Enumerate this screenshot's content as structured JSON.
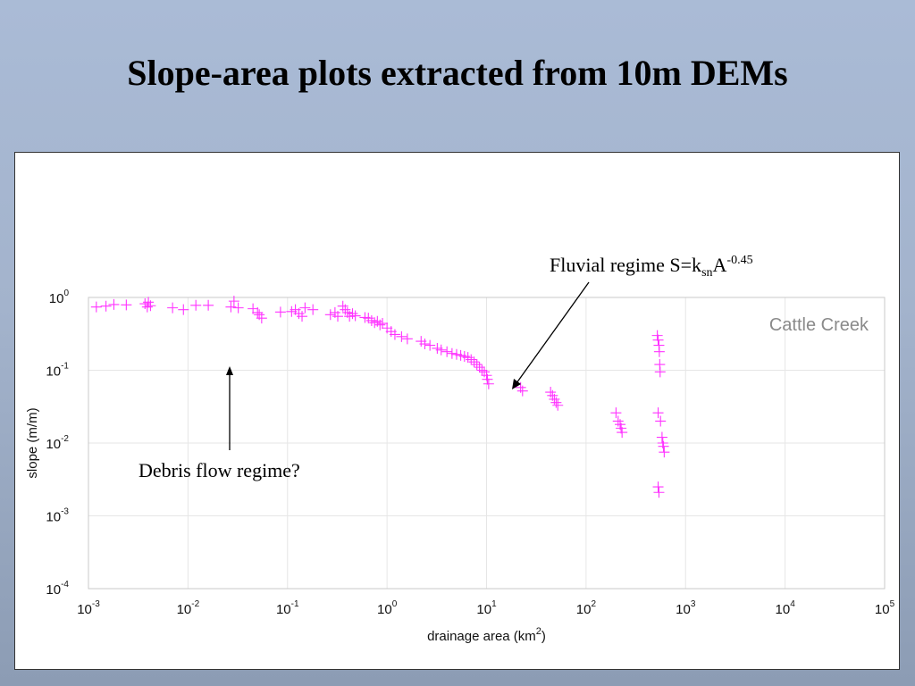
{
  "slide": {
    "title": "Slope-area plots extracted from 10m DEMs"
  },
  "chart_data": {
    "type": "scatter",
    "xlabel": {
      "text": "drainage area (km",
      "sup": "2",
      "end": ")"
    },
    "ylabel": "slope (m/m)",
    "xscale": "log",
    "yscale": "log",
    "xlim": [
      0.001,
      100000
    ],
    "ylim": [
      0.0001,
      1
    ],
    "grid": true,
    "marker": "+",
    "color": "#ff33ff",
    "xticks": [
      {
        "base": "10",
        "exp": "-3"
      },
      {
        "base": "10",
        "exp": "-2"
      },
      {
        "base": "10",
        "exp": "-1"
      },
      {
        "base": "10",
        "exp": "0"
      },
      {
        "base": "10",
        "exp": "1"
      },
      {
        "base": "10",
        "exp": "2"
      },
      {
        "base": "10",
        "exp": "3"
      },
      {
        "base": "10",
        "exp": "4"
      },
      {
        "base": "10",
        "exp": "5"
      }
    ],
    "yticks": [
      {
        "base": "10",
        "exp": "0"
      },
      {
        "base": "10",
        "exp": "-1"
      },
      {
        "base": "10",
        "exp": "-2"
      },
      {
        "base": "10",
        "exp": "-3"
      },
      {
        "base": "10",
        "exp": "-4"
      }
    ],
    "series_label": "Cattle Creek",
    "annotations": {
      "fluvial": {
        "prefix": "Fluvial regime S=k",
        "sub": "sn",
        "mid": "A",
        "sup": "-0.45"
      },
      "debris": "Debris flow regime?"
    },
    "points": [
      [
        0.0012,
        0.74
      ],
      [
        0.0015,
        0.76
      ],
      [
        0.0018,
        0.8
      ],
      [
        0.0024,
        0.79
      ],
      [
        0.0037,
        0.82
      ],
      [
        0.0039,
        0.74
      ],
      [
        0.004,
        0.86
      ],
      [
        0.0042,
        0.77
      ],
      [
        0.007,
        0.72
      ],
      [
        0.009,
        0.68
      ],
      [
        0.012,
        0.78
      ],
      [
        0.016,
        0.78
      ],
      [
        0.027,
        0.74
      ],
      [
        0.029,
        0.89
      ],
      [
        0.032,
        0.72
      ],
      [
        0.045,
        0.7
      ],
      [
        0.05,
        0.62
      ],
      [
        0.052,
        0.58
      ],
      [
        0.055,
        0.52
      ],
      [
        0.085,
        0.63
      ],
      [
        0.11,
        0.64
      ],
      [
        0.12,
        0.68
      ],
      [
        0.13,
        0.6
      ],
      [
        0.14,
        0.55
      ],
      [
        0.15,
        0.72
      ],
      [
        0.18,
        0.68
      ],
      [
        0.27,
        0.58
      ],
      [
        0.3,
        0.62
      ],
      [
        0.32,
        0.55
      ],
      [
        0.36,
        0.76
      ],
      [
        0.38,
        0.68
      ],
      [
        0.4,
        0.62
      ],
      [
        0.42,
        0.55
      ],
      [
        0.45,
        0.6
      ],
      [
        0.48,
        0.56
      ],
      [
        0.6,
        0.53
      ],
      [
        0.65,
        0.52
      ],
      [
        0.7,
        0.48
      ],
      [
        0.75,
        0.45
      ],
      [
        0.8,
        0.47
      ],
      [
        0.85,
        0.42
      ],
      [
        0.9,
        0.44
      ],
      [
        1.0,
        0.38
      ],
      [
        1.1,
        0.34
      ],
      [
        1.2,
        0.31
      ],
      [
        1.4,
        0.29
      ],
      [
        1.6,
        0.27
      ],
      [
        2.2,
        0.25
      ],
      [
        2.4,
        0.23
      ],
      [
        2.7,
        0.22
      ],
      [
        3.2,
        0.2
      ],
      [
        3.5,
        0.19
      ],
      [
        4.0,
        0.18
      ],
      [
        4.5,
        0.17
      ],
      [
        5.0,
        0.165
      ],
      [
        5.5,
        0.16
      ],
      [
        6.0,
        0.155
      ],
      [
        6.5,
        0.15
      ],
      [
        7.0,
        0.14
      ],
      [
        7.5,
        0.13
      ],
      [
        8.0,
        0.12
      ],
      [
        8.5,
        0.11
      ],
      [
        9.0,
        0.1
      ],
      [
        9.5,
        0.095
      ],
      [
        10.0,
        0.085
      ],
      [
        10.2,
        0.075
      ],
      [
        10.5,
        0.065
      ],
      [
        22,
        0.058
      ],
      [
        23,
        0.052
      ],
      [
        44,
        0.05
      ],
      [
        46,
        0.045
      ],
      [
        48,
        0.04
      ],
      [
        50,
        0.036
      ],
      [
        52,
        0.033
      ],
      [
        200,
        0.026
      ],
      [
        210,
        0.02
      ],
      [
        220,
        0.018
      ],
      [
        225,
        0.016
      ],
      [
        230,
        0.014
      ],
      [
        520,
        0.3
      ],
      [
        530,
        0.26
      ],
      [
        540,
        0.22
      ],
      [
        545,
        0.18
      ],
      [
        550,
        0.12
      ],
      [
        555,
        0.095
      ],
      [
        530,
        0.026
      ],
      [
        560,
        0.02
      ],
      [
        580,
        0.012
      ],
      [
        590,
        0.01
      ],
      [
        600,
        0.009
      ],
      [
        610,
        0.0075
      ],
      [
        530,
        0.0025
      ],
      [
        540,
        0.0021
      ]
    ]
  }
}
